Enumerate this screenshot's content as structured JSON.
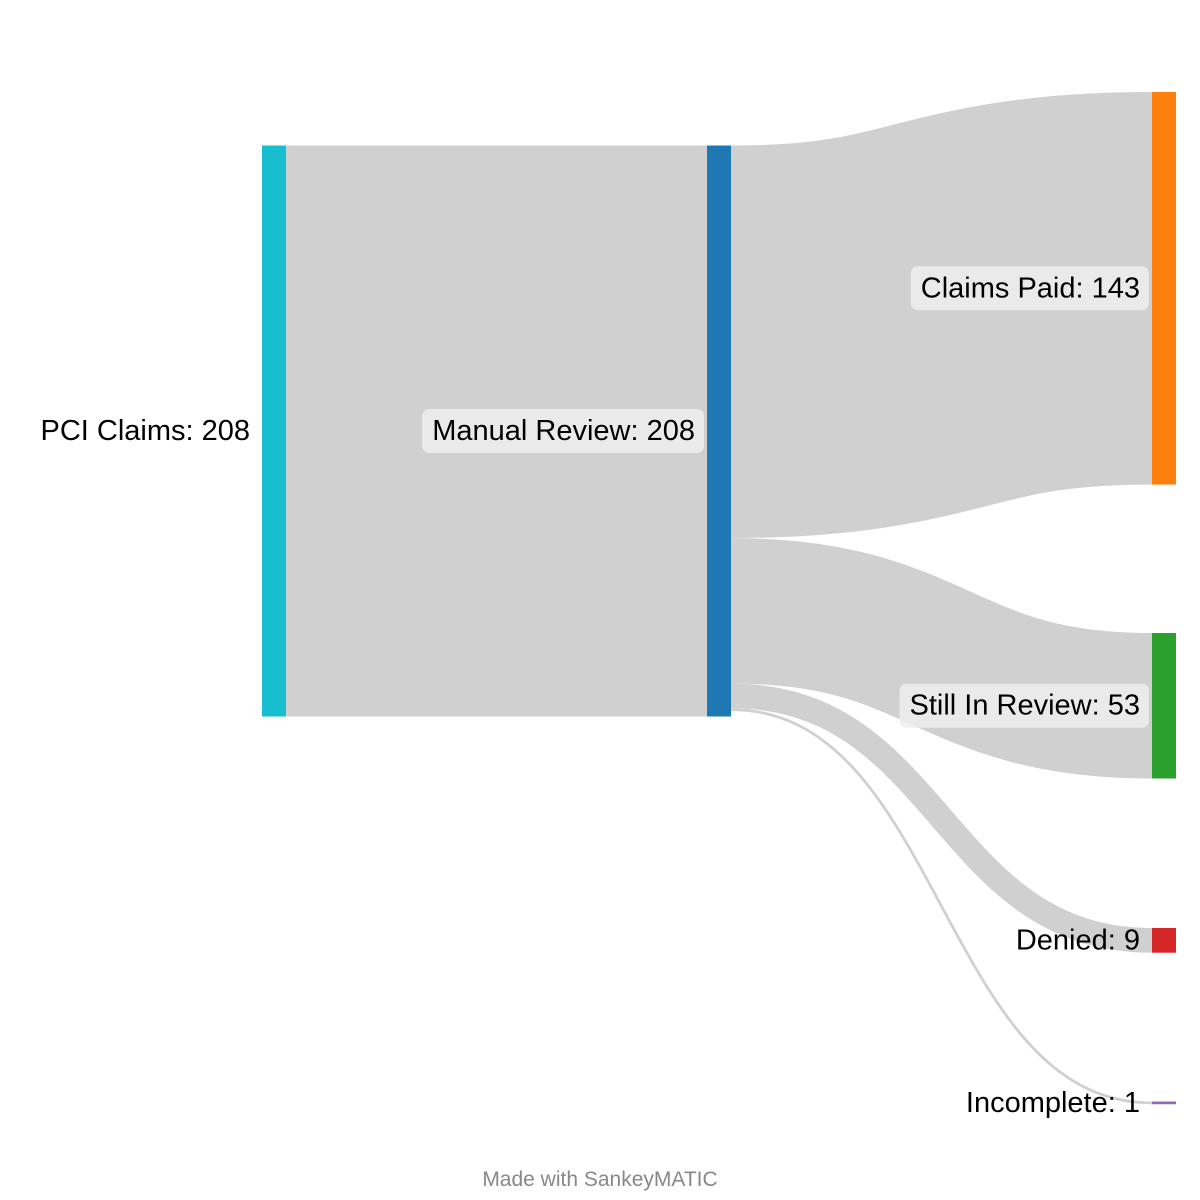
{
  "chart_data": {
    "type": "sankey",
    "nodes": [
      {
        "id": "pci",
        "name": "PCI Claims",
        "value": 208,
        "label": "PCI Claims: 208",
        "color": "#17becf"
      },
      {
        "id": "manual",
        "name": "Manual Review",
        "value": 208,
        "label": "Manual Review: 208",
        "color": "#1f77b4"
      },
      {
        "id": "paid",
        "name": "Claims Paid",
        "value": 143,
        "label": "Claims Paid: 143",
        "color": "#ff7f0e"
      },
      {
        "id": "review",
        "name": "Still In Review",
        "value": 53,
        "label": "Still In Review: 53",
        "color": "#2ca02c"
      },
      {
        "id": "denied",
        "name": "Denied",
        "value": 9,
        "label": "Denied: 9",
        "color": "#d62728"
      },
      {
        "id": "incomplete",
        "name": "Incomplete",
        "value": 1,
        "label": "Incomplete: 1",
        "color": "#9467bd"
      }
    ],
    "links": [
      {
        "source": "pci",
        "target": "manual",
        "value": 208
      },
      {
        "source": "manual",
        "target": "paid",
        "value": 143
      },
      {
        "source": "manual",
        "target": "review",
        "value": 53
      },
      {
        "source": "manual",
        "target": "denied",
        "value": 9
      },
      {
        "source": "manual",
        "target": "incomplete",
        "value": 1
      }
    ],
    "flow_color": "#d0d0d0"
  },
  "footer": {
    "credit": "Made with SankeyMATIC"
  }
}
